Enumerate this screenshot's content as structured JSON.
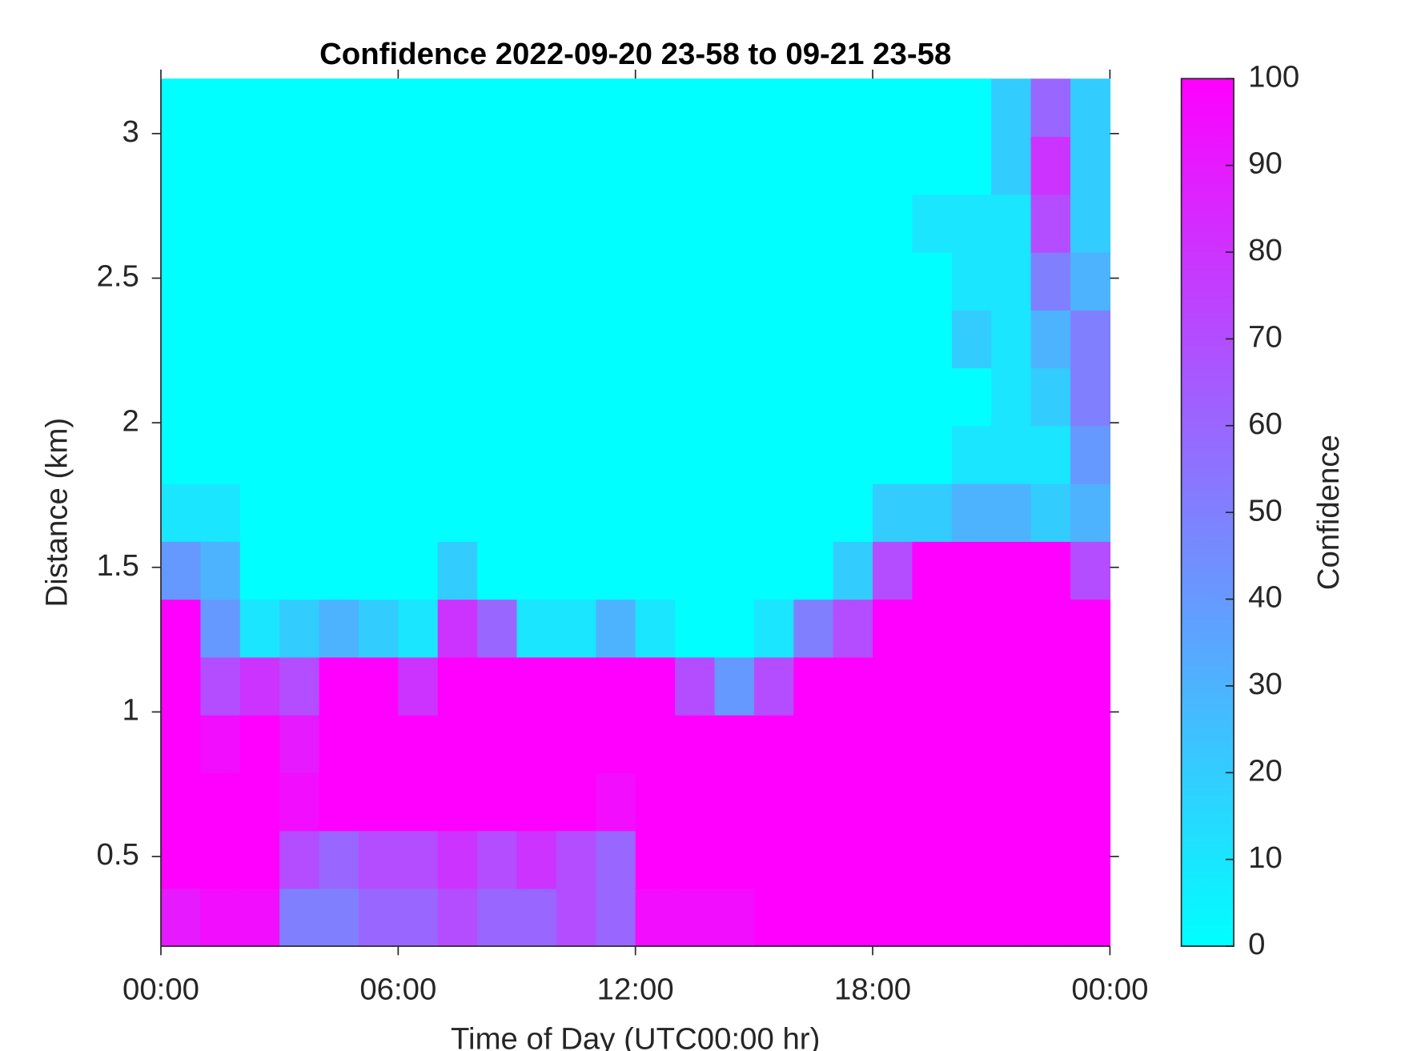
{
  "chart_data": {
    "type": "heatmap",
    "title": "Confidence 2022-09-20 23-58 to 09-21 23-58",
    "xlabel": "Time of Day (UTC00:00 hr)",
    "ylabel": "Distance (km)",
    "colorbar_label": "Confidence",
    "colormap": "cool",
    "x": [
      0.5,
      1.5,
      2.5,
      3.5,
      4.5,
      5.5,
      6.5,
      7.5,
      8.5,
      9.5,
      10.5,
      11.5,
      12.5,
      13.5,
      14.5,
      15.5,
      16.5,
      17.5,
      18.5,
      19.5,
      20.5,
      21.5,
      22.5,
      23.5
    ],
    "y": [
      0.29,
      0.49,
      0.69,
      0.89,
      1.09,
      1.29,
      1.49,
      1.69,
      1.89,
      2.09,
      2.29,
      2.49,
      2.69,
      2.89,
      3.09
    ],
    "values": [
      [
        90,
        100,
        100,
        100,
        100,
        100,
        40,
        10,
        0,
        0,
        0,
        0,
        0,
        0,
        0
      ],
      [
        95,
        100,
        100,
        95,
        70,
        40,
        30,
        10,
        0,
        0,
        0,
        0,
        0,
        0,
        0
      ],
      [
        95,
        100,
        100,
        100,
        80,
        10,
        0,
        0,
        0,
        0,
        0,
        0,
        0,
        0,
        0
      ],
      [
        50,
        70,
        95,
        90,
        70,
        20,
        0,
        0,
        0,
        0,
        0,
        0,
        0,
        0,
        0
      ],
      [
        50,
        60,
        100,
        100,
        100,
        30,
        0,
        0,
        0,
        0,
        0,
        0,
        0,
        0,
        0
      ],
      [
        60,
        70,
        100,
        100,
        100,
        20,
        0,
        0,
        0,
        0,
        0,
        0,
        0,
        0,
        0
      ],
      [
        60,
        70,
        100,
        100,
        80,
        10,
        0,
        0,
        0,
        0,
        0,
        0,
        0,
        0,
        0
      ],
      [
        70,
        80,
        100,
        100,
        100,
        80,
        20,
        0,
        0,
        0,
        0,
        0,
        0,
        0,
        0
      ],
      [
        60,
        70,
        100,
        100,
        100,
        60,
        0,
        0,
        0,
        0,
        0,
        0,
        0,
        0,
        0
      ],
      [
        60,
        80,
        100,
        100,
        100,
        10,
        0,
        0,
        0,
        0,
        0,
        0,
        0,
        0,
        0
      ],
      [
        70,
        70,
        100,
        100,
        100,
        10,
        0,
        0,
        0,
        0,
        0,
        0,
        0,
        0,
        0
      ],
      [
        60,
        60,
        95,
        100,
        100,
        30,
        0,
        0,
        0,
        0,
        0,
        0,
        0,
        0,
        0
      ],
      [
        95,
        100,
        100,
        100,
        100,
        10,
        0,
        0,
        0,
        0,
        0,
        0,
        0,
        0,
        0
      ],
      [
        95,
        100,
        100,
        100,
        70,
        0,
        0,
        0,
        0,
        0,
        0,
        0,
        0,
        0,
        0
      ],
      [
        95,
        100,
        100,
        100,
        40,
        0,
        0,
        0,
        0,
        0,
        0,
        0,
        0,
        0,
        0
      ],
      [
        100,
        100,
        100,
        100,
        70,
        10,
        0,
        0,
        0,
        0,
        0,
        0,
        0,
        0,
        0
      ],
      [
        100,
        100,
        100,
        100,
        100,
        50,
        0,
        0,
        0,
        0,
        0,
        0,
        0,
        0,
        0
      ],
      [
        100,
        100,
        100,
        100,
        100,
        70,
        20,
        0,
        0,
        0,
        0,
        0,
        0,
        0,
        0
      ],
      [
        100,
        100,
        100,
        100,
        100,
        100,
        70,
        20,
        0,
        0,
        0,
        0,
        0,
        0,
        0
      ],
      [
        100,
        100,
        100,
        100,
        100,
        100,
        100,
        20,
        0,
        0,
        0,
        0,
        10,
        0,
        0
      ],
      [
        100,
        100,
        100,
        100,
        100,
        100,
        100,
        30,
        10,
        0,
        20,
        10,
        10,
        0,
        0
      ],
      [
        100,
        100,
        100,
        100,
        100,
        100,
        100,
        30,
        10,
        10,
        10,
        10,
        10,
        20,
        20
      ],
      [
        100,
        100,
        100,
        100,
        100,
        100,
        100,
        20,
        10,
        20,
        30,
        50,
        70,
        80,
        60
      ],
      [
        100,
        100,
        100,
        100,
        100,
        100,
        70,
        30,
        40,
        50,
        50,
        30,
        20,
        20,
        20
      ]
    ],
    "xlim": [
      0,
      24
    ],
    "xticks": [
      {
        "value": 0,
        "label": "00:00"
      },
      {
        "value": 6,
        "label": "06:00"
      },
      {
        "value": 12,
        "label": "12:00"
      },
      {
        "value": 18,
        "label": "18:00"
      },
      {
        "value": 24,
        "label": "00:00"
      }
    ],
    "ylim": [
      0.19,
      3.19
    ],
    "yticks": [
      0.5,
      1,
      1.5,
      2,
      2.5,
      3
    ],
    "clim": [
      0,
      100
    ],
    "cticks": [
      0,
      10,
      20,
      30,
      40,
      50,
      60,
      70,
      80,
      90,
      100
    ]
  }
}
